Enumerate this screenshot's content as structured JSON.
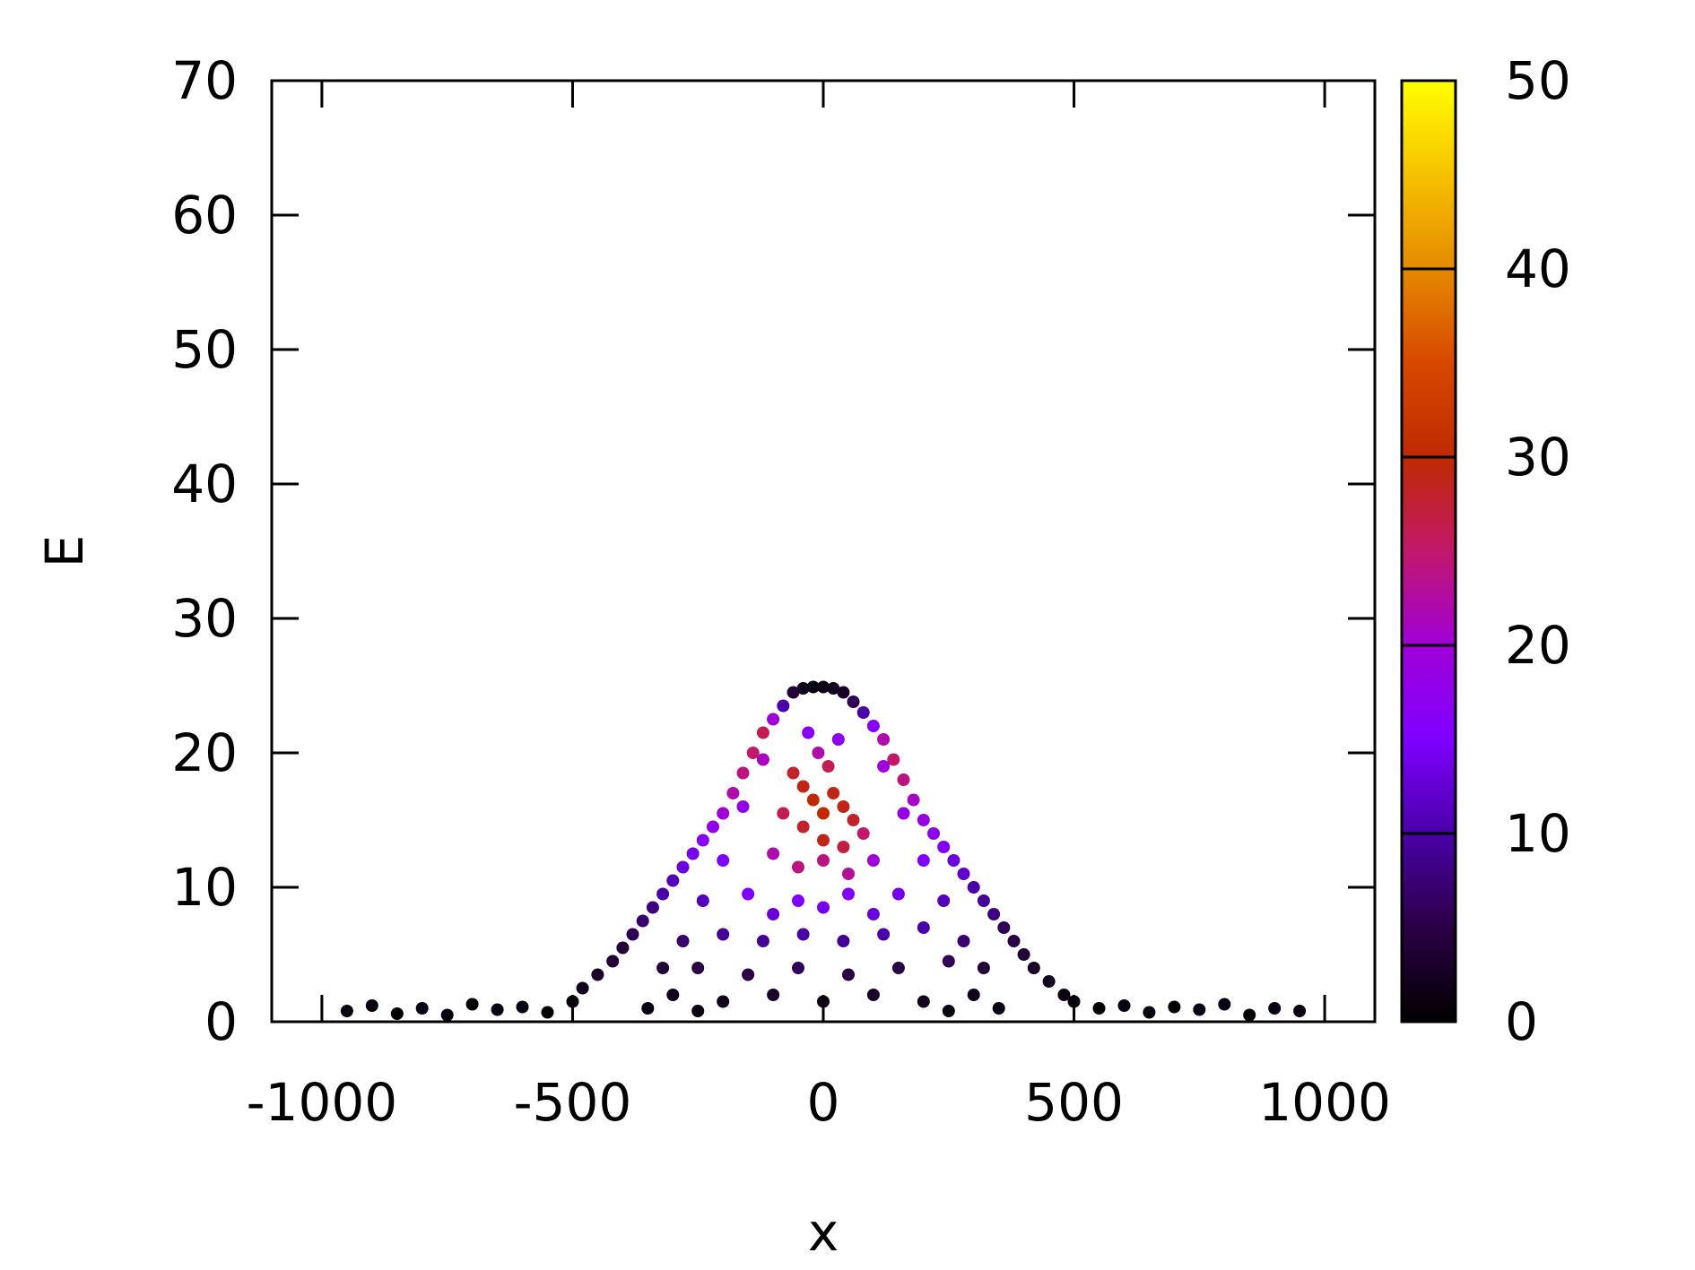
{
  "chart_data": {
    "type": "scatter",
    "title": "",
    "xlabel": "x",
    "ylabel": "E",
    "xlim": [
      -1100,
      1100
    ],
    "ylim": [
      0,
      70
    ],
    "x_ticks": [
      -1000,
      -500,
      0,
      500,
      1000
    ],
    "x_tick_labels": [
      "-1000",
      "-500",
      "0",
      "500",
      "1000"
    ],
    "y_ticks": [
      0,
      10,
      20,
      30,
      40,
      50,
      60,
      70
    ],
    "y_tick_labels": [
      "0",
      "10",
      "20",
      "30",
      "40",
      "50",
      "60",
      "70"
    ],
    "grid": false,
    "colorbar": {
      "range": [
        0,
        50
      ],
      "ticks": [
        0,
        10,
        20,
        30,
        40,
        50
      ],
      "tick_labels": [
        "0",
        "10",
        "20",
        "30",
        "40",
        "50"
      ],
      "palette": [
        "#000000",
        "#2a0045",
        "#4a00a8",
        "#7f00ff",
        "#a000d8",
        "#c2186a",
        "#c02a00",
        "#d84800",
        "#e58a00",
        "#f6c200",
        "#ffff00"
      ]
    },
    "series": [
      {
        "points": [
          [
            -950,
            0.8,
            1
          ],
          [
            -900,
            1.2,
            1
          ],
          [
            -850,
            0.6,
            0
          ],
          [
            -800,
            1.0,
            1
          ],
          [
            -750,
            0.5,
            1
          ],
          [
            -700,
            1.3,
            0
          ],
          [
            -650,
            0.9,
            1
          ],
          [
            -600,
            1.1,
            1
          ],
          [
            -550,
            0.7,
            0
          ],
          [
            -500,
            1.5,
            1
          ],
          [
            -480,
            2.5,
            2
          ],
          [
            -450,
            3.5,
            3
          ],
          [
            -420,
            4.5,
            4
          ],
          [
            -400,
            5.5,
            4
          ],
          [
            -380,
            6.5,
            6
          ],
          [
            -360,
            7.5,
            7
          ],
          [
            -340,
            8.5,
            8
          ],
          [
            -320,
            9.5,
            10
          ],
          [
            -300,
            10.5,
            11
          ],
          [
            -280,
            11.5,
            13
          ],
          [
            -260,
            12.5,
            14
          ],
          [
            -240,
            13.5,
            16
          ],
          [
            -220,
            14.5,
            18
          ],
          [
            -200,
            15.5,
            20
          ],
          [
            -180,
            17.0,
            22
          ],
          [
            -160,
            18.5,
            24
          ],
          [
            -140,
            20.0,
            25
          ],
          [
            -120,
            21.5,
            26
          ],
          [
            -100,
            22.5,
            20
          ],
          [
            -80,
            23.5,
            10
          ],
          [
            -60,
            24.5,
            4
          ],
          [
            -40,
            24.8,
            2
          ],
          [
            -20,
            24.9,
            1
          ],
          [
            0,
            24.9,
            1
          ],
          [
            20,
            24.8,
            2
          ],
          [
            40,
            24.5,
            3
          ],
          [
            60,
            23.8,
            6
          ],
          [
            80,
            23.0,
            10
          ],
          [
            100,
            22.0,
            16
          ],
          [
            120,
            21.0,
            22
          ],
          [
            140,
            19.5,
            25
          ],
          [
            160,
            18.0,
            24
          ],
          [
            180,
            16.5,
            21
          ],
          [
            200,
            15.0,
            19
          ],
          [
            220,
            14.0,
            17
          ],
          [
            240,
            13.0,
            15
          ],
          [
            260,
            12.0,
            13
          ],
          [
            280,
            11.0,
            12
          ],
          [
            300,
            10.0,
            10
          ],
          [
            320,
            9.0,
            9
          ],
          [
            340,
            8.0,
            8
          ],
          [
            360,
            7.0,
            6
          ],
          [
            380,
            6.0,
            5
          ],
          [
            400,
            5.0,
            4
          ],
          [
            420,
            4.0,
            3
          ],
          [
            450,
            3.0,
            2
          ],
          [
            480,
            2.0,
            1
          ],
          [
            500,
            1.5,
            1
          ],
          [
            550,
            1.0,
            0
          ],
          [
            600,
            1.2,
            1
          ],
          [
            650,
            0.7,
            1
          ],
          [
            700,
            1.1,
            0
          ],
          [
            750,
            0.9,
            1
          ],
          [
            800,
            1.3,
            1
          ],
          [
            850,
            0.5,
            0
          ],
          [
            900,
            1.0,
            1
          ],
          [
            950,
            0.8,
            1
          ],
          [
            -60,
            18.5,
            28
          ],
          [
            -40,
            17.5,
            29
          ],
          [
            -20,
            16.5,
            30
          ],
          [
            0,
            15.5,
            30
          ],
          [
            20,
            17.0,
            29
          ],
          [
            40,
            16.0,
            29
          ],
          [
            60,
            15.0,
            28
          ],
          [
            -80,
            15.5,
            26
          ],
          [
            -40,
            14.5,
            28
          ],
          [
            0,
            13.5,
            29
          ],
          [
            40,
            13.0,
            27
          ],
          [
            80,
            14.0,
            25
          ],
          [
            -100,
            12.5,
            22
          ],
          [
            -50,
            11.5,
            24
          ],
          [
            0,
            12.0,
            24
          ],
          [
            50,
            11.0,
            23
          ],
          [
            100,
            12.0,
            20
          ],
          [
            -150,
            9.5,
            15
          ],
          [
            -100,
            8.0,
            13
          ],
          [
            -50,
            9.0,
            15
          ],
          [
            0,
            8.5,
            14
          ],
          [
            50,
            9.5,
            15
          ],
          [
            100,
            8.0,
            13
          ],
          [
            150,
            9.5,
            14
          ],
          [
            -200,
            6.5,
            9
          ],
          [
            -120,
            6.0,
            9
          ],
          [
            -40,
            6.5,
            10
          ],
          [
            40,
            6.0,
            9
          ],
          [
            120,
            6.5,
            10
          ],
          [
            200,
            7.0,
            10
          ],
          [
            -250,
            4.0,
            5
          ],
          [
            -150,
            3.5,
            5
          ],
          [
            -50,
            4.0,
            6
          ],
          [
            50,
            3.5,
            5
          ],
          [
            150,
            4.0,
            5
          ],
          [
            250,
            4.5,
            6
          ],
          [
            -300,
            2.0,
            2
          ],
          [
            -200,
            1.5,
            2
          ],
          [
            -100,
            2.0,
            3
          ],
          [
            0,
            1.5,
            2
          ],
          [
            100,
            2.0,
            3
          ],
          [
            200,
            1.5,
            2
          ],
          [
            300,
            2.0,
            2
          ],
          [
            -350,
            1.0,
            1
          ],
          [
            350,
            1.0,
            1
          ],
          [
            -250,
            0.8,
            1
          ],
          [
            250,
            0.8,
            1
          ],
          [
            -120,
            19.5,
            21
          ],
          [
            120,
            19.0,
            20
          ],
          [
            -160,
            16.0,
            18
          ],
          [
            160,
            15.5,
            18
          ],
          [
            -200,
            12.0,
            15
          ],
          [
            200,
            12.0,
            15
          ],
          [
            -240,
            9.0,
            11
          ],
          [
            240,
            9.0,
            11
          ],
          [
            -280,
            6.0,
            7
          ],
          [
            280,
            6.0,
            7
          ],
          [
            -320,
            4.0,
            4
          ],
          [
            320,
            4.0,
            4
          ],
          [
            -30,
            21.5,
            16
          ],
          [
            30,
            21.0,
            17
          ],
          [
            -10,
            20.0,
            22
          ],
          [
            10,
            19.0,
            26
          ]
        ]
      }
    ]
  }
}
